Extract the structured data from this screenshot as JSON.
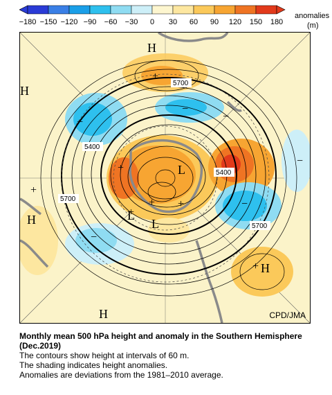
{
  "colorbar": {
    "ticks": [
      "−180",
      "−150",
      "−120",
      "−90",
      "−60",
      "−30",
      "0",
      "30",
      "60",
      "90",
      "120",
      "150",
      "180"
    ],
    "unit_line1": "anomalies",
    "unit_line2": "(m)",
    "colors": [
      "#2a3bd6",
      "#3a7fe6",
      "#1a9fe8",
      "#2ec0ee",
      "#8fdcf2",
      "#cdeff8",
      "#fdf6cf",
      "#fde7a0",
      "#fbc95a",
      "#f7a532",
      "#ef7423",
      "#e23a1b"
    ]
  },
  "map": {
    "highs": [
      "H",
      "H",
      "H",
      "H",
      "H"
    ],
    "lows": [
      "L",
      "L",
      "L"
    ],
    "contour_labels": [
      "5700",
      "5400",
      "5400",
      "5700",
      "5700"
    ],
    "plus_signs": [
      "+",
      "+",
      "+",
      "+",
      "+",
      "+",
      "+"
    ],
    "minus_signs": [
      "−",
      "−",
      "−",
      "−",
      "−",
      "−"
    ],
    "credit": "CPD/JMA"
  },
  "caption": {
    "title": "Monthly mean 500 hPa height and anomaly in the Southern Hemisphere (Dec.2019)",
    "line1": "The contours show height at intervals of 60 m.",
    "line2": "The shading indicates height anomalies.",
    "line3": "Anomalies are deviations from the 1981–2010 average."
  }
}
